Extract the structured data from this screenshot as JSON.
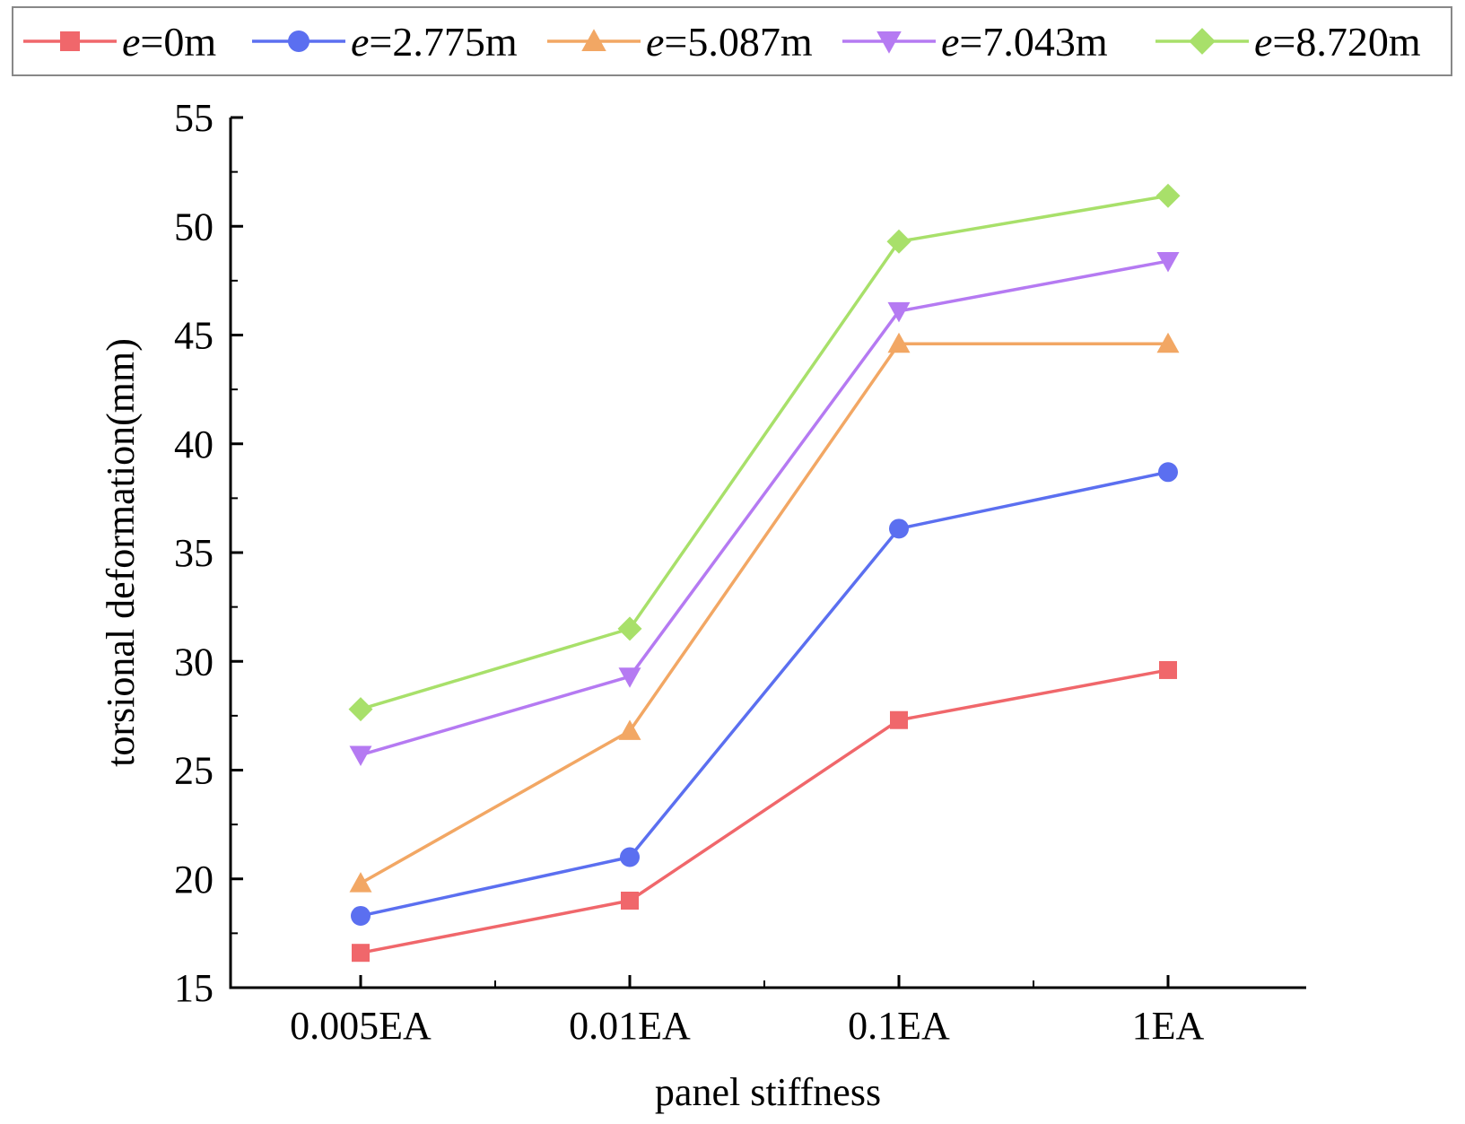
{
  "chart_data": {
    "type": "line",
    "title": "",
    "xlabel": "panel stiffness",
    "ylabel": "torsional deformation(mm)",
    "categories": [
      "0.005EA",
      "0.01EA",
      "0.1EA",
      "1EA"
    ],
    "ylim": [
      15,
      55
    ],
    "yticks": [
      15,
      20,
      25,
      30,
      35,
      40,
      45,
      50,
      55
    ],
    "grid": false,
    "legend_position": "top",
    "series": [
      {
        "name_prefix": "e",
        "name_suffix": "=0m",
        "color": "#f0676b",
        "marker": "square",
        "values": [
          16.6,
          19.0,
          27.3,
          29.6
        ]
      },
      {
        "name_prefix": "e",
        "name_suffix": "=2.775m",
        "color": "#5b6ff0",
        "marker": "circle",
        "values": [
          18.3,
          21.0,
          36.1,
          38.7
        ]
      },
      {
        "name_prefix": "e",
        "name_suffix": "=5.087m",
        "color": "#f2a764",
        "marker": "triangle-up",
        "values": [
          19.8,
          26.8,
          44.6,
          44.6
        ]
      },
      {
        "name_prefix": "e",
        "name_suffix": "=7.043m",
        "color": "#b57af2",
        "marker": "triangle-down",
        "values": [
          25.7,
          29.3,
          46.1,
          48.4
        ]
      },
      {
        "name_prefix": "e",
        "name_suffix": "=8.720m",
        "color": "#a8e06a",
        "marker": "diamond",
        "values": [
          27.8,
          31.5,
          49.3,
          51.4
        ]
      }
    ]
  }
}
